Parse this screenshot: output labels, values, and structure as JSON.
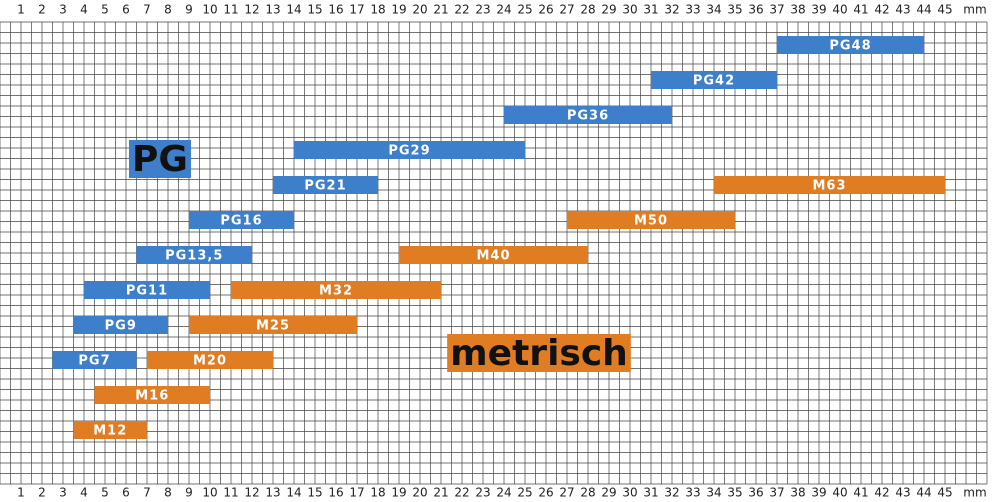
{
  "chart_data": {
    "type": "range-bar",
    "x_label": "mm",
    "xlim": [
      0,
      47
    ],
    "xticks": [
      1,
      2,
      3,
      4,
      5,
      6,
      7,
      8,
      9,
      10,
      11,
      12,
      13,
      14,
      15,
      16,
      17,
      18,
      19,
      20,
      21,
      22,
      23,
      24,
      25,
      26,
      27,
      28,
      29,
      30,
      31,
      32,
      33,
      34,
      35,
      36,
      37,
      38,
      39,
      40,
      41,
      42,
      43,
      44,
      45
    ],
    "grid": true,
    "series": [
      {
        "name": "PG",
        "color": "#3d7fcb",
        "labels": [
          "PG7",
          "PG9",
          "PG11",
          "PG13,5",
          "PG16",
          "PG21",
          "PG29",
          "PG36",
          "PG42",
          "PG48"
        ],
        "values": [
          [
            2.5,
            6.5
          ],
          [
            3.5,
            8
          ],
          [
            4,
            10
          ],
          [
            6.5,
            12
          ],
          [
            9,
            14
          ],
          [
            13,
            18
          ],
          [
            14,
            25
          ],
          [
            24,
            32
          ],
          [
            31,
            37
          ],
          [
            37,
            44
          ]
        ]
      },
      {
        "name": "metrisch",
        "color": "#e07c22",
        "labels": [
          "M12",
          "M16",
          "M20",
          "M25",
          "M32",
          "M40",
          "M50",
          "M63"
        ],
        "values": [
          [
            3.5,
            7
          ],
          [
            4.5,
            10
          ],
          [
            7,
            13
          ],
          [
            9,
            17
          ],
          [
            11,
            21
          ],
          [
            19,
            28
          ],
          [
            27,
            35
          ],
          [
            34,
            45
          ]
        ]
      }
    ]
  }
}
